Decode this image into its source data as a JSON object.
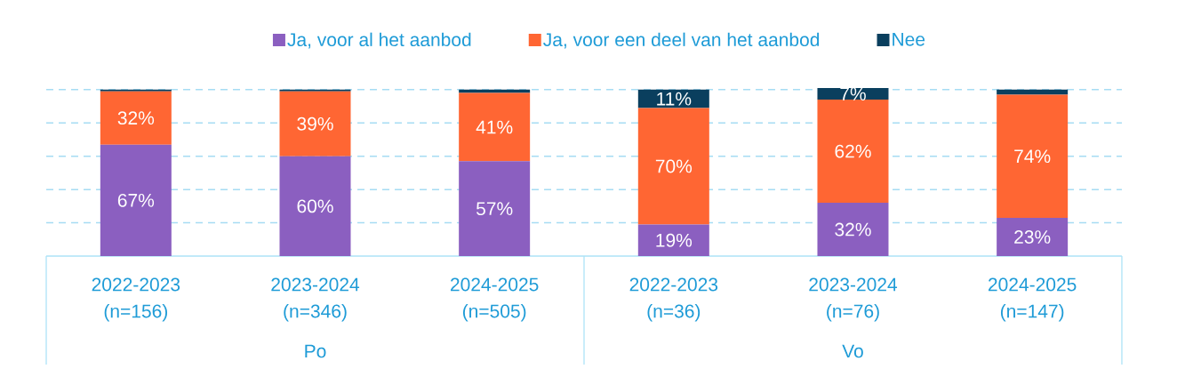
{
  "chart_data": {
    "type": "bar",
    "stacked": true,
    "categories": [
      "2022-2023 (n=156)",
      "2023-2024 (n=346)",
      "2024-2025 (n=505)",
      "2022-2023 (n=36)",
      "2023-2024 (n=76)",
      "2024-2025 (n=147)"
    ],
    "series": [
      {
        "name": "Ja, voor al het aanbod",
        "color": "#8B5FC0",
        "values": [
          67,
          60,
          57,
          19,
          32,
          23
        ],
        "value_labels": [
          "67%",
          "60%",
          "57%",
          "19%",
          "32%",
          "23%"
        ]
      },
      {
        "name": "Ja, voor een deel van het aanbod",
        "color": "#FF6633",
        "values": [
          32,
          39,
          41,
          70,
          62,
          74
        ],
        "value_labels": [
          "32%",
          "39%",
          "41%",
          "70%",
          "62%",
          "74%"
        ]
      },
      {
        "name": "Nee",
        "color": "#0A3F5E",
        "values": [
          1,
          1,
          2,
          11,
          7,
          3
        ],
        "value_labels": [
          null,
          null,
          null,
          "11%",
          "7%",
          null
        ]
      }
    ],
    "annotations": [
      "Po",
      "Vo"
    ],
    "ylim": [
      0,
      101
    ],
    "yticks": [
      {
        "value": 20,
        "label": null
      },
      {
        "value": 40,
        "label": null
      },
      {
        "value": 60,
        "label": null
      },
      {
        "value": 80,
        "label": null
      },
      {
        "value": 100,
        "label": null
      }
    ],
    "grid": "y",
    "legend": "top",
    "tick_labels": "x"
  }
}
